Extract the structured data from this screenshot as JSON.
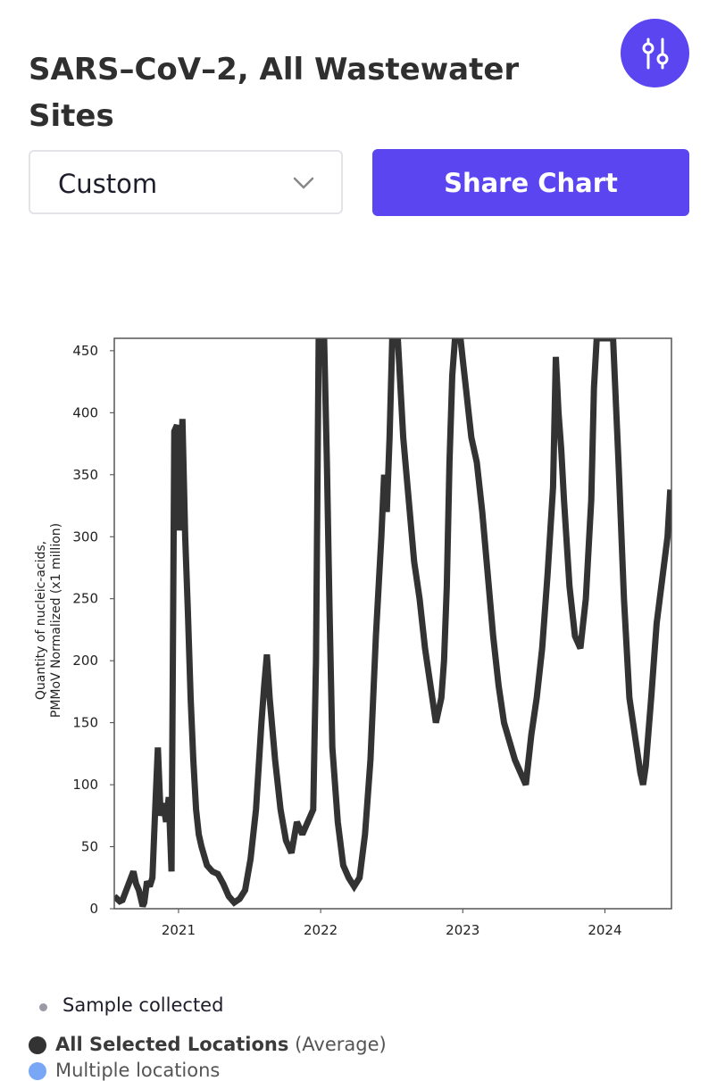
{
  "header": {
    "title": "SARS–CoV–2, All Wastewater Sites"
  },
  "controls": {
    "range_select_value": "Custom",
    "share_label": "Share Chart",
    "accent_color": "#5a45f0"
  },
  "icons": {
    "filter": "sliders-icon",
    "dropdown": "chevron-down-icon"
  },
  "chart_data": {
    "type": "line",
    "ylabel_line1": "Quantity of nucleic-acids,",
    "ylabel_line2": "PMMoV Normalized (x1 million)",
    "ylim": [
      0,
      460
    ],
    "yticks": [
      0,
      50,
      100,
      150,
      200,
      250,
      300,
      350,
      400,
      450
    ],
    "xticks": [
      "2021",
      "2022",
      "2023",
      "2024"
    ],
    "xlim": [
      "2020-07-20",
      "2024-06-20"
    ],
    "grid": false,
    "line_color": "#333333",
    "series": [
      {
        "points": [
          [
            "2020-07-20",
            10
          ],
          [
            "2020-07-27",
            8
          ],
          [
            "2020-08-03",
            6
          ],
          [
            "2020-08-10",
            7
          ],
          [
            "2020-09-07",
            30
          ],
          [
            "2020-09-14",
            20
          ],
          [
            "2020-09-21",
            15
          ],
          [
            "2020-10-01",
            2
          ],
          [
            "2020-10-05",
            5
          ],
          [
            "2020-10-12",
            22
          ],
          [
            "2020-10-19",
            18
          ],
          [
            "2020-10-26",
            25
          ],
          [
            "2020-11-02",
            80
          ],
          [
            "2020-11-09",
            130
          ],
          [
            "2020-11-16",
            75
          ],
          [
            "2020-11-23",
            85
          ],
          [
            "2020-11-30",
            70
          ],
          [
            "2020-12-07",
            90
          ],
          [
            "2020-12-14",
            30
          ],
          [
            "2020-12-21",
            385
          ],
          [
            "2020-12-28",
            390
          ],
          [
            "2021-01-04",
            305
          ],
          [
            "2021-01-11",
            395
          ],
          [
            "2021-01-18",
            300
          ],
          [
            "2021-01-25",
            240
          ],
          [
            "2021-02-01",
            170
          ],
          [
            "2021-02-08",
            120
          ],
          [
            "2021-02-15",
            80
          ],
          [
            "2021-02-22",
            60
          ],
          [
            "2021-03-01",
            50
          ],
          [
            "2021-03-15",
            35
          ],
          [
            "2021-03-29",
            30
          ],
          [
            "2021-04-12",
            28
          ],
          [
            "2021-04-26",
            20
          ],
          [
            "2021-05-10",
            10
          ],
          [
            "2021-05-24",
            5
          ],
          [
            "2021-06-07",
            8
          ],
          [
            "2021-06-21",
            15
          ],
          [
            "2021-07-05",
            40
          ],
          [
            "2021-07-19",
            80
          ],
          [
            "2021-08-02",
            150
          ],
          [
            "2021-08-09",
            180
          ],
          [
            "2021-08-16",
            205
          ],
          [
            "2021-08-23",
            170
          ],
          [
            "2021-09-06",
            120
          ],
          [
            "2021-09-20",
            80
          ],
          [
            "2021-10-04",
            55
          ],
          [
            "2021-10-18",
            45
          ],
          [
            "2021-11-01",
            70
          ],
          [
            "2021-11-15",
            60
          ],
          [
            "2021-11-29",
            70
          ],
          [
            "2021-12-13",
            80
          ],
          [
            "2021-12-20",
            200
          ],
          [
            "2021-12-27",
            460
          ],
          [
            "2022-01-03",
            460
          ],
          [
            "2022-01-10",
            460
          ],
          [
            "2022-01-17",
            360
          ],
          [
            "2022-01-24",
            240
          ],
          [
            "2022-01-31",
            130
          ],
          [
            "2022-02-14",
            70
          ],
          [
            "2022-02-28",
            35
          ],
          [
            "2022-03-14",
            25
          ],
          [
            "2022-03-28",
            18
          ],
          [
            "2022-04-11",
            25
          ],
          [
            "2022-04-25",
            60
          ],
          [
            "2022-05-09",
            120
          ],
          [
            "2022-05-23",
            220
          ],
          [
            "2022-06-06",
            300
          ],
          [
            "2022-06-13",
            350
          ],
          [
            "2022-06-20",
            320
          ],
          [
            "2022-06-27",
            380
          ],
          [
            "2022-07-04",
            460
          ],
          [
            "2022-07-18",
            460
          ],
          [
            "2022-08-01",
            380
          ],
          [
            "2022-08-15",
            330
          ],
          [
            "2022-08-29",
            280
          ],
          [
            "2022-09-12",
            250
          ],
          [
            "2022-09-26",
            210
          ],
          [
            "2022-10-10",
            180
          ],
          [
            "2022-10-24",
            150
          ],
          [
            "2022-11-07",
            170
          ],
          [
            "2022-11-14",
            200
          ],
          [
            "2022-11-21",
            260
          ],
          [
            "2022-11-28",
            360
          ],
          [
            "2022-12-05",
            430
          ],
          [
            "2022-12-12",
            460
          ],
          [
            "2022-12-26",
            460
          ],
          [
            "2023-01-02",
            440
          ],
          [
            "2023-01-09",
            420
          ],
          [
            "2023-01-16",
            400
          ],
          [
            "2023-01-23",
            380
          ],
          [
            "2023-02-06",
            360
          ],
          [
            "2023-02-20",
            320
          ],
          [
            "2023-03-06",
            270
          ],
          [
            "2023-03-20",
            220
          ],
          [
            "2023-04-03",
            180
          ],
          [
            "2023-04-17",
            150
          ],
          [
            "2023-05-01",
            135
          ],
          [
            "2023-05-15",
            120
          ],
          [
            "2023-05-29",
            110
          ],
          [
            "2023-06-12",
            100
          ],
          [
            "2023-06-26",
            140
          ],
          [
            "2023-07-10",
            170
          ],
          [
            "2023-07-24",
            210
          ],
          [
            "2023-08-07",
            270
          ],
          [
            "2023-08-21",
            340
          ],
          [
            "2023-08-28",
            445
          ],
          [
            "2023-09-04",
            400
          ],
          [
            "2023-09-11",
            370
          ],
          [
            "2023-09-18",
            330
          ],
          [
            "2023-10-02",
            260
          ],
          [
            "2023-10-16",
            220
          ],
          [
            "2023-10-30",
            210
          ],
          [
            "2023-11-13",
            250
          ],
          [
            "2023-11-27",
            330
          ],
          [
            "2023-12-04",
            420
          ],
          [
            "2023-12-11",
            460
          ],
          [
            "2024-01-08",
            460
          ],
          [
            "2024-01-15",
            460
          ],
          [
            "2024-01-22",
            460
          ],
          [
            "2024-02-05",
            360
          ],
          [
            "2024-02-19",
            250
          ],
          [
            "2024-03-04",
            170
          ],
          [
            "2024-03-18",
            140
          ],
          [
            "2024-04-01",
            110
          ],
          [
            "2024-04-08",
            100
          ],
          [
            "2024-04-15",
            115
          ],
          [
            "2024-04-29",
            170
          ],
          [
            "2024-05-13",
            230
          ],
          [
            "2024-05-27",
            265
          ],
          [
            "2024-06-10",
            300
          ],
          [
            "2024-06-17",
            338
          ]
        ]
      }
    ]
  },
  "legend": {
    "sample_label": "Sample collected",
    "selected_bold": "All Selected Locations",
    "selected_suffix": "(Average)",
    "multiple_label": "Multiple locations",
    "sample_color": "#9a9aa5",
    "selected_color": "#333333",
    "multiple_color": "#7aa7f5"
  }
}
